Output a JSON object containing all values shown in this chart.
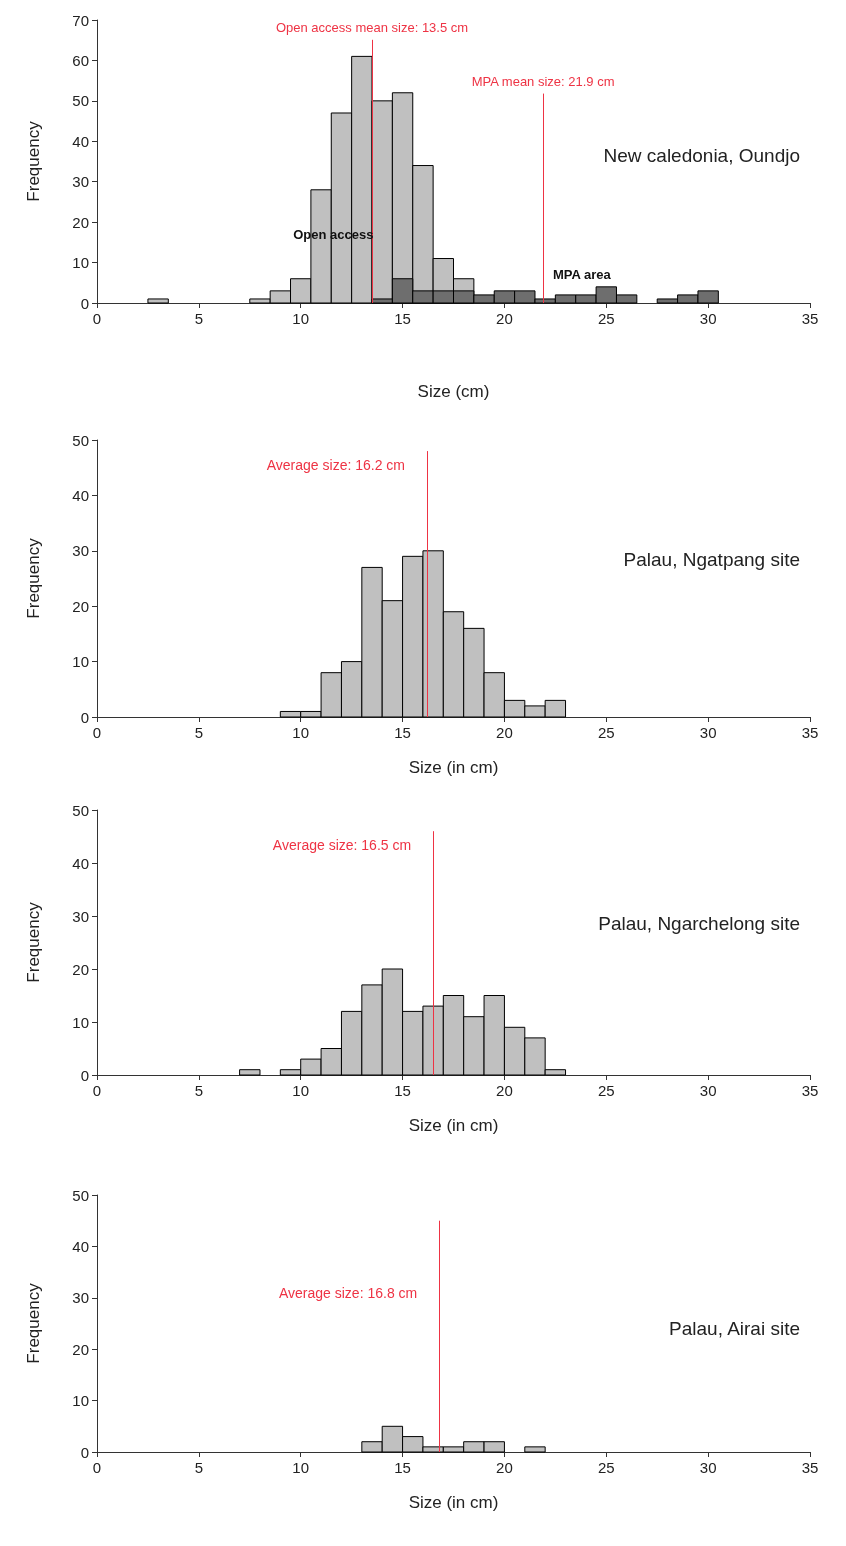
{
  "chart_data": [
    {
      "type": "histogram",
      "annotations": [
        "New caledonia, Oundjo"
      ],
      "xlabel": "Size (cm)",
      "ylabel": "Frequency",
      "bins": [
        2.5,
        3.5,
        4.5,
        5.5,
        6.5,
        7.5,
        8.5,
        9.5,
        10.5,
        11.5,
        12.5,
        13.5,
        14.5,
        15.5,
        16.5,
        17.5,
        18.5,
        19.5,
        20.5,
        21.5,
        22.5,
        23.5,
        24.5,
        25.5,
        26.5,
        27.5,
        28.5,
        29.5,
        30.5
      ],
      "series": [
        {
          "name": "Open access",
          "color": "#c0c0c0",
          "values": [
            1,
            0,
            0,
            0,
            0,
            1,
            3,
            6,
            28,
            47,
            61,
            50,
            52,
            34,
            11,
            6,
            0,
            0,
            0,
            0,
            0,
            0,
            0,
            0,
            0,
            0,
            0,
            0
          ]
        },
        {
          "name": "MPA area",
          "color": "#6e6e6e",
          "values": [
            0,
            0,
            0,
            0,
            0,
            0,
            0,
            0,
            0,
            0,
            0,
            1,
            6,
            3,
            3,
            3,
            2,
            3,
            3,
            1,
            2,
            2,
            4,
            2,
            0,
            1,
            2,
            3
          ]
        }
      ],
      "xlim": [
        0,
        35
      ],
      "xticks": [
        0,
        5,
        10,
        15,
        20,
        25,
        30,
        35
      ],
      "ylim": [
        0,
        70
      ],
      "yticks": [
        0,
        10,
        20,
        30,
        40,
        50,
        60,
        70
      ],
      "ref_lines": [
        {
          "axis": "x",
          "value": 13.5,
          "label": "Open access mean size: 13.5 cm",
          "color": "#ee3344"
        },
        {
          "axis": "x",
          "value": 21.9,
          "label": "MPA mean size: 21.9 cm",
          "color": "#ee3344"
        }
      ],
      "legend": false,
      "grid": false
    },
    {
      "type": "histogram",
      "annotations": [
        "Palau, Ngatpang site"
      ],
      "xlabel": "Size (in cm)",
      "ylabel": "Frequency",
      "bins": [
        9,
        10,
        11,
        12,
        13,
        14,
        15,
        16,
        17,
        18,
        19,
        20,
        21,
        22,
        23
      ],
      "values": [
        1,
        1,
        8,
        10,
        27,
        21,
        29,
        30,
        19,
        16,
        8,
        3,
        2,
        3
      ],
      "color": "#c0c0c0",
      "xlim": [
        0,
        35
      ],
      "xticks": [
        0,
        5,
        10,
        15,
        20,
        25,
        30,
        35
      ],
      "ylim": [
        0,
        50
      ],
      "yticks": [
        0,
        10,
        20,
        30,
        40,
        50
      ],
      "ref_lines": [
        {
          "axis": "x",
          "value": 16.2,
          "label": "Average size: 16.2 cm",
          "color": "#ee3344"
        }
      ],
      "legend": false,
      "grid": false
    },
    {
      "type": "histogram",
      "annotations": [
        "Palau, Ngarchelong site"
      ],
      "xlabel": "Size (in cm)",
      "ylabel": "Frequency",
      "bins": [
        7,
        8,
        9,
        10,
        11,
        12,
        13,
        14,
        15,
        16,
        17,
        18,
        19,
        20,
        21,
        22,
        23
      ],
      "values": [
        1,
        0,
        1,
        3,
        5,
        12,
        17,
        20,
        12,
        13,
        15,
        11,
        15,
        9,
        7,
        1
      ],
      "color": "#c0c0c0",
      "xlim": [
        0,
        35
      ],
      "xticks": [
        0,
        5,
        10,
        15,
        20,
        25,
        30,
        35
      ],
      "ylim": [
        0,
        50
      ],
      "yticks": [
        0,
        10,
        20,
        30,
        40,
        50
      ],
      "ref_lines": [
        {
          "axis": "x",
          "value": 16.5,
          "label": "Average size: 16.5 cm",
          "color": "#ee3344"
        }
      ],
      "legend": false,
      "grid": false
    },
    {
      "type": "histogram",
      "annotations": [
        "Palau, Airai site"
      ],
      "xlabel": "Size (in cm)",
      "ylabel": "Frequency",
      "bins": [
        13,
        14,
        15,
        16,
        17,
        18,
        19,
        20,
        21,
        22
      ],
      "values": [
        2,
        5,
        3,
        1,
        1,
        2,
        2,
        0,
        1
      ],
      "color": "#c0c0c0",
      "xlim": [
        0,
        35
      ],
      "xticks": [
        0,
        5,
        10,
        15,
        20,
        25,
        30,
        35
      ],
      "ylim": [
        0,
        50
      ],
      "yticks": [
        0,
        10,
        20,
        30,
        40,
        50
      ],
      "ref_lines": [
        {
          "axis": "x",
          "value": 16.8,
          "label": "Average size: 16.8 cm",
          "color": "#ee3344"
        }
      ],
      "legend": false,
      "grid": false
    }
  ]
}
